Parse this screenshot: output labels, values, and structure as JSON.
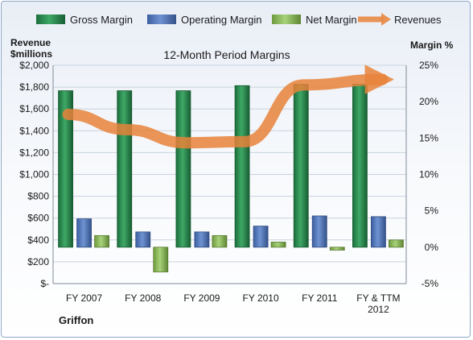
{
  "chart_data": {
    "type": "bar",
    "title": "12-Month Period Margins",
    "company": "Griffon",
    "categories": [
      "FY 2007",
      "FY 2008",
      "FY 2009",
      "FY 2010",
      "FY 2011",
      "FY & TTM 2012"
    ],
    "left_axis": {
      "label_line1": "Revenue",
      "label_line2": "$millions",
      "ylim": [
        0,
        2000
      ],
      "ticks": [
        "$-",
        "$200",
        "$400",
        "$600",
        "$800",
        "$1,000",
        "$1,200",
        "$1,400",
        "$1,600",
        "$1,800",
        "$2,000"
      ]
    },
    "right_axis": {
      "label": "Margin %",
      "ylim": [
        -5,
        25
      ],
      "ticks": [
        "-5%",
        "0%",
        "5%",
        "10%",
        "15%",
        "20%",
        "25%"
      ]
    },
    "series": [
      {
        "name": "Gross Margin",
        "axis": "right",
        "kind": "bar",
        "color": "#1f7a45",
        "values": [
          21.5,
          21.5,
          21.5,
          22.2,
          22.4,
          22.4
        ]
      },
      {
        "name": "Operating Margin",
        "axis": "right",
        "kind": "bar",
        "color": "#4a6fb5",
        "values": [
          3.9,
          2.1,
          2.1,
          2.9,
          4.3,
          4.2
        ]
      },
      {
        "name": "Net Margin",
        "axis": "right",
        "kind": "bar",
        "color": "#8cb857",
        "values": [
          1.6,
          -3.4,
          1.6,
          0.7,
          -0.4,
          1.0
        ]
      },
      {
        "name": "Revenues",
        "axis": "left",
        "kind": "line",
        "color": "#e8823a",
        "values": [
          1550,
          1410,
          1290,
          1300,
          1820,
          1870
        ]
      }
    ],
    "grid": true,
    "legend": "top"
  }
}
